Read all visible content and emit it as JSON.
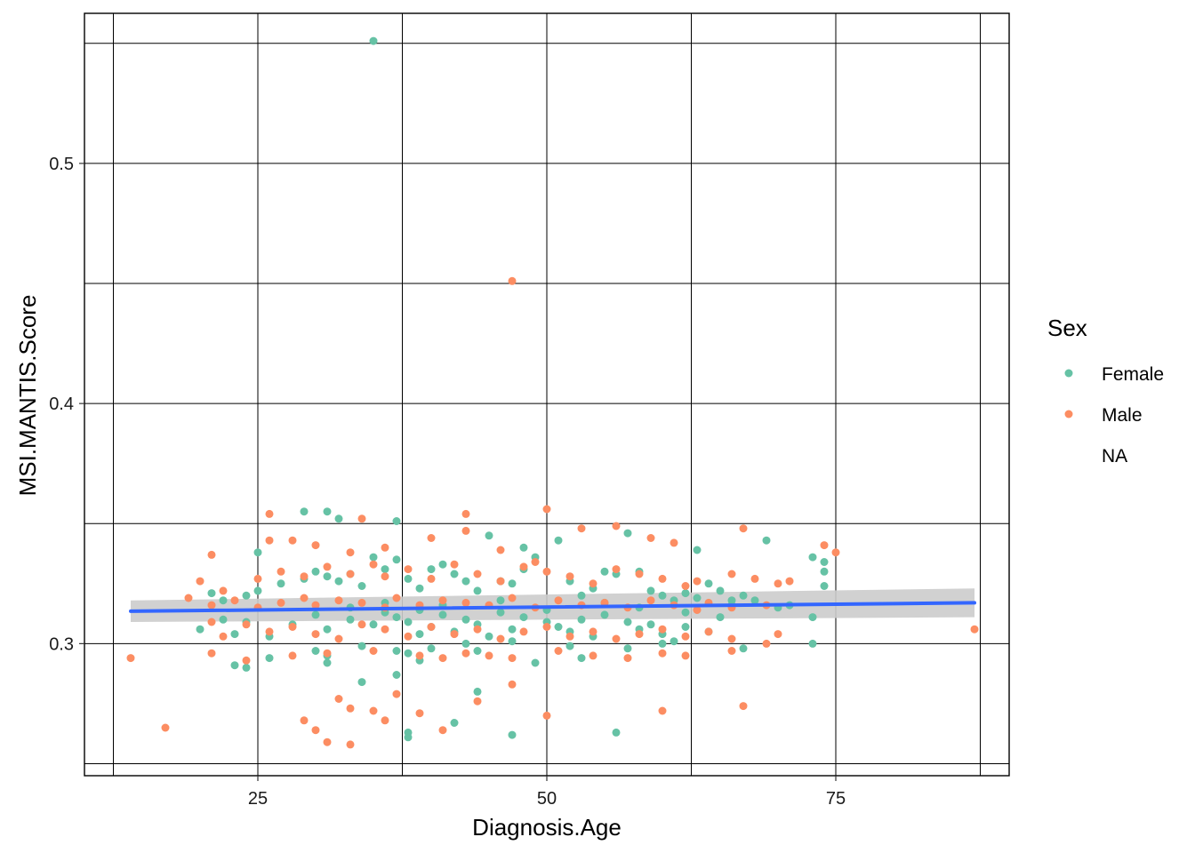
{
  "chart_data": {
    "type": "scatter",
    "xlabel": "Diagnosis.Age",
    "ylabel": "MSI.MANTIS.Score",
    "xlim": [
      10,
      90
    ],
    "ylim": [
      0.245,
      0.5625
    ],
    "x_ticks": [
      25,
      50,
      75
    ],
    "y_ticks": [
      0.3,
      0.4,
      0.5
    ],
    "x_tick_labels": [
      "25",
      "50",
      "75"
    ],
    "y_tick_labels": [
      "0.3",
      "0.4",
      "0.5"
    ],
    "grid": true,
    "legend": {
      "title": "Sex",
      "placement": "right",
      "entries": [
        "Female",
        "Male",
        "NA"
      ]
    },
    "colors": {
      "Female": "#66c2a5",
      "Male": "#fc8d62",
      "trend": "#3366ff",
      "band": "#cccccc"
    },
    "trend_line": {
      "x": [
        14,
        87
      ],
      "y": [
        0.3135,
        0.317
      ],
      "ci_halfwidth": [
        0.0045,
        0.006
      ]
    },
    "series": [
      {
        "name": "Female",
        "x": [
          35,
          25,
          29,
          31,
          32,
          37,
          45,
          48,
          51,
          57,
          63,
          69,
          73,
          74,
          74,
          74,
          21,
          22,
          24,
          25,
          27,
          29,
          30,
          31,
          32,
          33,
          34,
          36,
          37,
          38,
          39,
          40,
          41,
          42,
          43,
          44,
          46,
          47,
          48,
          49,
          52,
          53,
          54,
          55,
          56,
          58,
          59,
          60,
          61,
          62,
          63,
          64,
          65,
          66,
          67,
          71,
          73,
          20,
          22,
          23,
          24,
          26,
          28,
          30,
          31,
          33,
          35,
          36,
          37,
          38,
          39,
          40,
          41,
          42,
          43,
          44,
          45,
          46,
          47,
          48,
          50,
          51,
          52,
          53,
          54,
          55,
          57,
          58,
          59,
          60,
          61,
          62,
          64,
          65,
          67,
          73,
          23,
          24,
          26,
          30,
          31,
          34,
          37,
          38,
          39,
          40,
          43,
          44,
          47,
          49,
          52,
          53,
          57,
          60,
          34,
          37,
          38,
          42,
          44,
          38,
          47,
          56,
          35,
          31,
          33,
          36,
          39,
          41,
          46,
          50,
          55,
          58,
          62,
          66,
          68,
          70
        ],
        "y": [
          0.551,
          0.338,
          0.355,
          0.355,
          0.352,
          0.351,
          0.345,
          0.34,
          0.343,
          0.346,
          0.339,
          0.343,
          0.336,
          0.334,
          0.33,
          0.324,
          0.321,
          0.318,
          0.32,
          0.322,
          0.325,
          0.327,
          0.33,
          0.328,
          0.326,
          0.329,
          0.324,
          0.331,
          0.335,
          0.327,
          0.323,
          0.331,
          0.333,
          0.329,
          0.326,
          0.322,
          0.326,
          0.325,
          0.331,
          0.336,
          0.326,
          0.32,
          0.323,
          0.33,
          0.329,
          0.33,
          0.322,
          0.32,
          0.318,
          0.321,
          0.319,
          0.325,
          0.322,
          0.318,
          0.32,
          0.316,
          0.311,
          0.306,
          0.31,
          0.304,
          0.309,
          0.303,
          0.308,
          0.312,
          0.306,
          0.31,
          0.308,
          0.313,
          0.311,
          0.309,
          0.304,
          0.307,
          0.312,
          0.305,
          0.31,
          0.308,
          0.303,
          0.313,
          0.306,
          0.311,
          0.309,
          0.307,
          0.305,
          0.31,
          0.303,
          0.312,
          0.309,
          0.306,
          0.308,
          0.304,
          0.301,
          0.307,
          0.305,
          0.311,
          0.298,
          0.3,
          0.291,
          0.29,
          0.294,
          0.297,
          0.292,
          0.299,
          0.297,
          0.296,
          0.293,
          0.298,
          0.3,
          0.297,
          0.301,
          0.292,
          0.299,
          0.294,
          0.298,
          0.3,
          0.284,
          0.287,
          0.263,
          0.267,
          0.28,
          0.261,
          0.262,
          0.263,
          0.336,
          0.295,
          0.315,
          0.317,
          0.314,
          0.316,
          0.318,
          0.314,
          0.317,
          0.315,
          0.313,
          0.316,
          0.318,
          0.315
        ]
      },
      {
        "name": "Male",
        "x": [
          47,
          26,
          34,
          43,
          50,
          21,
          26,
          28,
          30,
          33,
          36,
          40,
          43,
          46,
          49,
          53,
          56,
          59,
          61,
          67,
          74,
          75,
          20,
          22,
          25,
          27,
          29,
          31,
          33,
          35,
          36,
          38,
          40,
          42,
          44,
          46,
          48,
          50,
          52,
          54,
          56,
          58,
          60,
          62,
          63,
          66,
          68,
          70,
          71,
          19,
          21,
          23,
          25,
          27,
          29,
          30,
          32,
          34,
          36,
          37,
          39,
          41,
          43,
          45,
          47,
          49,
          51,
          53,
          55,
          57,
          59,
          61,
          63,
          64,
          66,
          69,
          21,
          22,
          24,
          26,
          28,
          30,
          32,
          34,
          36,
          38,
          40,
          42,
          44,
          46,
          48,
          50,
          52,
          54,
          56,
          58,
          60,
          62,
          64,
          66,
          70,
          87,
          14,
          21,
          24,
          28,
          31,
          35,
          39,
          41,
          43,
          45,
          47,
          51,
          54,
          57,
          60,
          62,
          66,
          69,
          17,
          29,
          30,
          31,
          32,
          33,
          35,
          36,
          39,
          41,
          44,
          47,
          50,
          60,
          67,
          33,
          37
        ],
        "y": [
          0.451,
          0.354,
          0.352,
          0.354,
          0.356,
          0.337,
          0.343,
          0.343,
          0.341,
          0.338,
          0.34,
          0.344,
          0.347,
          0.339,
          0.334,
          0.348,
          0.349,
          0.344,
          0.342,
          0.348,
          0.341,
          0.338,
          0.326,
          0.322,
          0.327,
          0.33,
          0.328,
          0.332,
          0.329,
          0.333,
          0.328,
          0.331,
          0.327,
          0.333,
          0.329,
          0.326,
          0.332,
          0.33,
          0.328,
          0.325,
          0.331,
          0.329,
          0.327,
          0.324,
          0.326,
          0.329,
          0.327,
          0.325,
          0.326,
          0.319,
          0.316,
          0.318,
          0.315,
          0.317,
          0.319,
          0.316,
          0.318,
          0.317,
          0.315,
          0.319,
          0.316,
          0.318,
          0.317,
          0.316,
          0.319,
          0.315,
          0.318,
          0.316,
          0.317,
          0.315,
          0.318,
          0.316,
          0.314,
          0.317,
          0.315,
          0.316,
          0.309,
          0.303,
          0.308,
          0.305,
          0.307,
          0.304,
          0.302,
          0.308,
          0.306,
          0.303,
          0.307,
          0.304,
          0.306,
          0.302,
          0.305,
          0.307,
          0.303,
          0.305,
          0.302,
          0.304,
          0.306,
          0.303,
          0.305,
          0.302,
          0.304,
          0.306,
          0.294,
          0.296,
          0.293,
          0.295,
          0.296,
          0.297,
          0.295,
          0.294,
          0.296,
          0.295,
          0.294,
          0.297,
          0.295,
          0.294,
          0.296,
          0.295,
          0.297,
          0.3,
          0.265,
          0.268,
          0.264,
          0.259,
          0.277,
          0.273,
          0.272,
          0.268,
          0.271,
          0.264,
          0.276,
          0.283,
          0.27,
          0.272,
          0.274,
          0.258,
          0.279
        ]
      }
    ]
  }
}
